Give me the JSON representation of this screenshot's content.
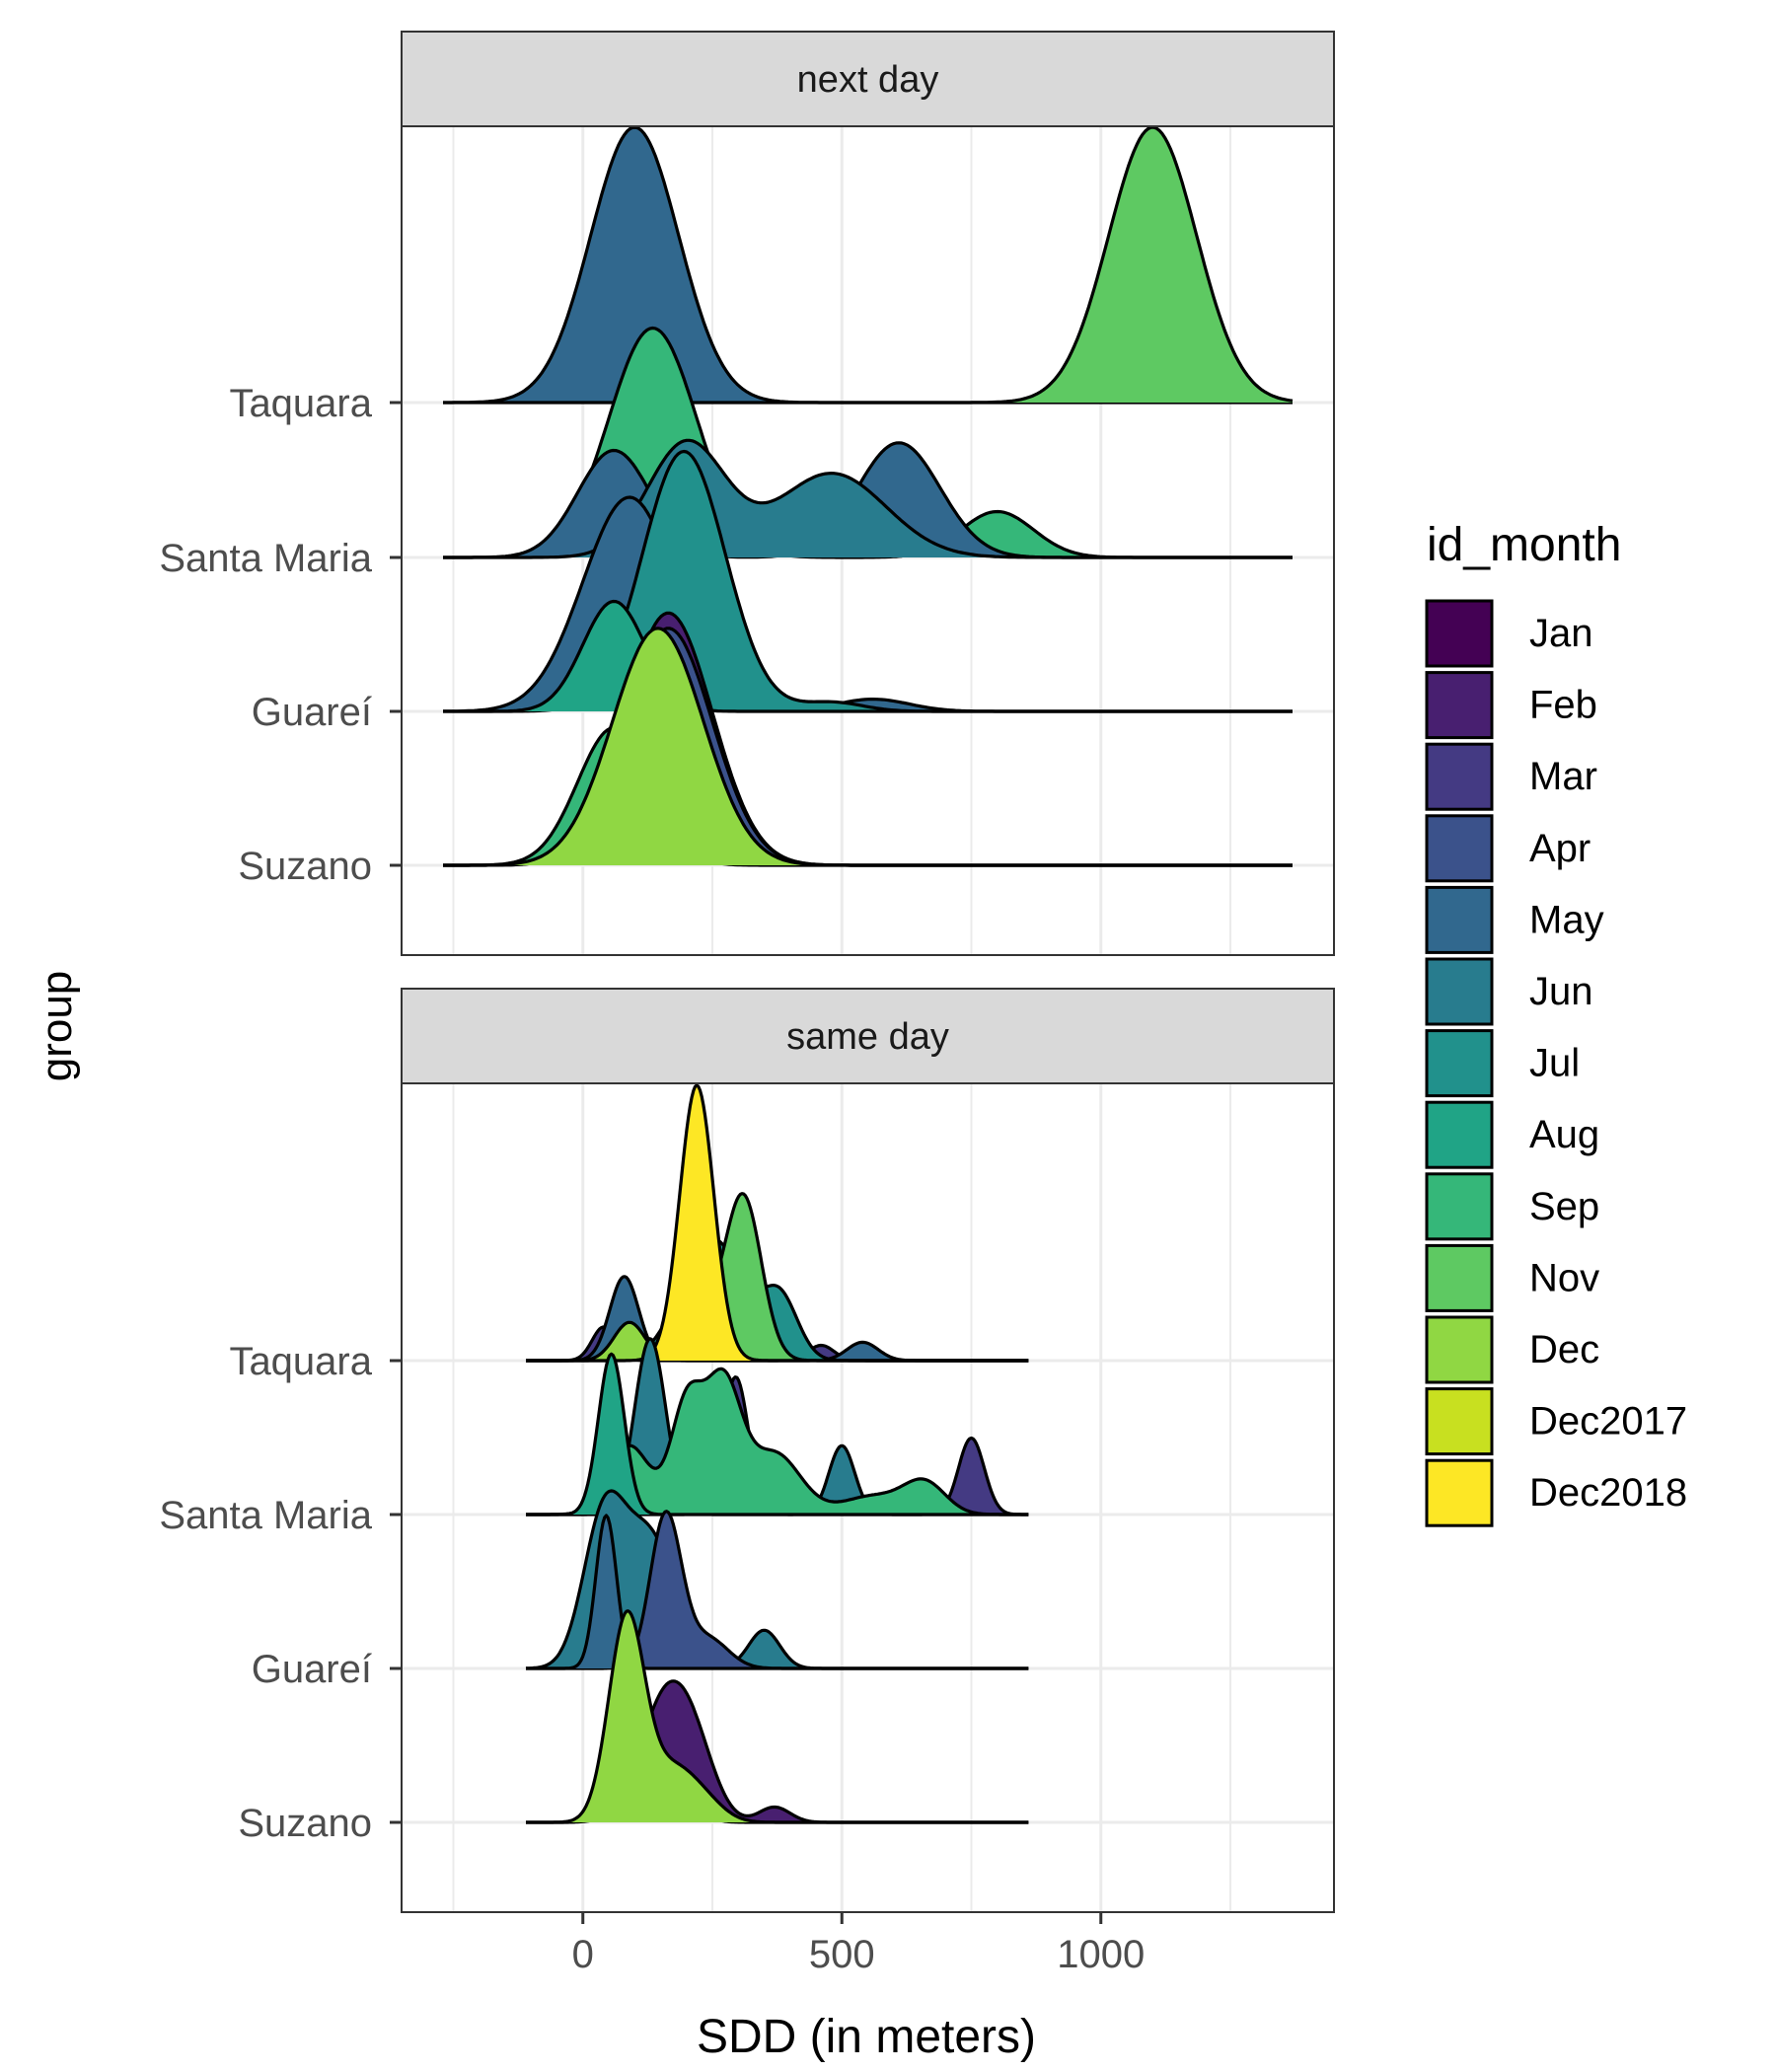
{
  "chart_data": {
    "type": "ridgeline",
    "xlabel": "SDD (in meters)",
    "ylabel": "group",
    "xlim": [
      -350,
      1450
    ],
    "x_ticks": [
      0,
      500,
      1000
    ],
    "x_tick_labels": [
      "0",
      "500",
      "1000"
    ],
    "groups": [
      "Suzano",
      "Guareí",
      "Santa Maria",
      "Taquara"
    ],
    "grid": true,
    "legend": {
      "title": "id_month",
      "position": "right",
      "entries": [
        {
          "label": "Jan",
          "color": "#440154"
        },
        {
          "label": "Feb",
          "color": "#481F70"
        },
        {
          "label": "Mar",
          "color": "#443A83"
        },
        {
          "label": "Apr",
          "color": "#3B528B"
        },
        {
          "label": "May",
          "color": "#31688E"
        },
        {
          "label": "Jun",
          "color": "#287C8E"
        },
        {
          "label": "Jul",
          "color": "#21918C"
        },
        {
          "label": "Aug",
          "color": "#20A486"
        },
        {
          "label": "Sep",
          "color": "#35B779"
        },
        {
          "label": "Nov",
          "color": "#5EC962"
        },
        {
          "label": "Dec",
          "color": "#90D743"
        },
        {
          "label": "Dec2017",
          "color": "#C8E020"
        },
        {
          "label": "Dec2018",
          "color": "#FDE725"
        }
      ]
    },
    "panels": [
      {
        "title": "next day",
        "x_range": [
          -270,
          1370
        ],
        "curves": [
          {
            "group": "Taquara",
            "month": "May",
            "components": [
              [
                100,
                85,
                1.8
              ]
            ]
          },
          {
            "group": "Taquara",
            "month": "Nov",
            "components": [
              [
                1100,
                85,
                1.8
              ]
            ]
          },
          {
            "group": "Santa Maria",
            "month": "Sep",
            "components": [
              [
                135,
                85,
                1.5
              ],
              [
                800,
                70,
                0.3
              ]
            ]
          },
          {
            "group": "Santa Maria",
            "month": "May",
            "components": [
              [
                60,
                70,
                0.7
              ],
              [
                610,
                80,
                0.75
              ]
            ]
          },
          {
            "group": "Santa Maria",
            "month": "Jun",
            "components": [
              [
                200,
                75,
                0.75
              ],
              [
                480,
                105,
                0.55
              ]
            ]
          },
          {
            "group": "Guareí",
            "month": "May",
            "components": [
              [
                90,
                90,
                1.4
              ],
              [
                560,
                70,
                0.08
              ]
            ]
          },
          {
            "group": "Guareí",
            "month": "Jul",
            "components": [
              [
                195,
                80,
                1.7
              ],
              [
                480,
                60,
                0.06
              ]
            ]
          },
          {
            "group": "Guareí",
            "month": "Aug",
            "components": [
              [
                60,
                60,
                0.72
              ]
            ]
          },
          {
            "group": "Suzano",
            "month": "Feb",
            "components": [
              [
                165,
                85,
                1.65
              ]
            ]
          },
          {
            "group": "Suzano",
            "month": "Apr",
            "components": [
              [
                165,
                85,
                1.55
              ]
            ]
          },
          {
            "group": "Suzano",
            "month": "Sep",
            "components": [
              [
                60,
                70,
                0.9
              ]
            ]
          },
          {
            "group": "Suzano",
            "month": "Dec",
            "components": [
              [
                145,
                88,
                1.55
              ]
            ]
          }
        ]
      },
      {
        "title": "same day",
        "x_range": [
          -110,
          860
        ],
        "curves": [
          {
            "group": "Taquara",
            "month": "Mar",
            "components": [
              [
                40,
                22,
                0.22
              ],
              [
                460,
                25,
                0.1
              ]
            ]
          },
          {
            "group": "Taquara",
            "month": "May",
            "components": [
              [
                80,
                28,
                0.55
              ],
              [
                540,
                30,
                0.12
              ]
            ]
          },
          {
            "group": "Taquara",
            "month": "Jul",
            "components": [
              [
                250,
                60,
                0.8
              ],
              [
                380,
                35,
                0.4
              ]
            ]
          },
          {
            "group": "Taquara",
            "month": "Nov",
            "components": [
              [
                310,
                35,
                1.05
              ],
              [
                220,
                45,
                0.3
              ]
            ]
          },
          {
            "group": "Taquara",
            "month": "Dec",
            "components": [
              [
                90,
                30,
                0.25
              ]
            ]
          },
          {
            "group": "Taquara",
            "month": "Dec2018",
            "components": [
              [
                220,
                33,
                1.8
              ]
            ]
          },
          {
            "group": "Santa Maria",
            "month": "Mar",
            "components": [
              [
                295,
                25,
                0.9
              ],
              [
                750,
                25,
                0.5
              ]
            ]
          },
          {
            "group": "Santa Maria",
            "month": "Jun",
            "components": [
              [
                130,
                30,
                1.15
              ],
              [
                500,
                25,
                0.45
              ]
            ]
          },
          {
            "group": "Santa Maria",
            "month": "Sep",
            "components": [
              [
                90,
                40,
                0.45
              ],
              [
                200,
                30,
                0.7
              ],
              [
                270,
                35,
                0.85
              ],
              [
                370,
                50,
                0.4
              ],
              [
                560,
                60,
                0.12
              ],
              [
                660,
                40,
                0.2
              ]
            ]
          },
          {
            "group": "Santa Maria",
            "month": "Aug",
            "components": [
              [
                55,
                25,
                1.05
              ]
            ]
          },
          {
            "group": "Guareí",
            "month": "Jun",
            "components": [
              [
                40,
                40,
                0.95
              ],
              [
                130,
                50,
                0.85
              ],
              [
                350,
                30,
                0.25
              ]
            ]
          },
          {
            "group": "Guareí",
            "month": "Apr",
            "components": [
              [
                160,
                30,
                1.0
              ],
              [
                240,
                40,
                0.2
              ]
            ]
          },
          {
            "group": "Guareí",
            "month": "May",
            "components": [
              [
                45,
                20,
                1.0
              ]
            ]
          },
          {
            "group": "Suzano",
            "month": "Feb",
            "components": [
              [
                160,
                50,
                0.8
              ],
              [
                220,
                40,
                0.3
              ],
              [
                370,
                30,
                0.1
              ]
            ]
          },
          {
            "group": "Suzano",
            "month": "Aug",
            "components": [
              [
                50,
                20,
                0.6
              ],
              [
                160,
                40,
                0.4
              ]
            ]
          },
          {
            "group": "Suzano",
            "month": "Dec",
            "components": [
              [
                85,
                35,
                1.35
              ],
              [
                170,
                40,
                0.3
              ],
              [
                230,
                40,
                0.15
              ]
            ]
          }
        ]
      }
    ]
  }
}
